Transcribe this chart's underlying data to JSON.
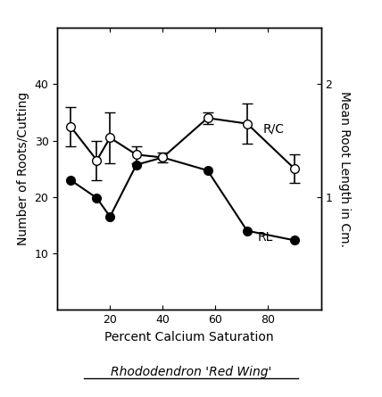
{
  "title_roman": "Rhododendron ",
  "title_italic": "'Red Wing'",
  "xlabel": "Percent Calcium Saturation",
  "ylabel_left": "Number of Roots/Cutting",
  "ylabel_right": "Mean Root Length in Cm.",
  "x": [
    5,
    15,
    20,
    30,
    40,
    57,
    72,
    90
  ],
  "rc_y": [
    32.5,
    26.5,
    30.5,
    27.5,
    27.0,
    34.0,
    33.0,
    25.0
  ],
  "rc_yerr": [
    3.5,
    3.5,
    4.5,
    1.5,
    0.8,
    1.0,
    3.5,
    2.5
  ],
  "rl_y": [
    23.0,
    19.8,
    16.5,
    25.7,
    27.0,
    24.7,
    14.0,
    12.3
  ],
  "xlim": [
    0,
    100
  ],
  "ylim_left": [
    0,
    50
  ],
  "ylim_right": [
    0,
    2.5
  ],
  "xticks": [
    20,
    40,
    60,
    80
  ],
  "yticks_left": [
    10,
    20,
    30,
    40
  ],
  "yticks_right": [
    1,
    2
  ],
  "rc_label": "R/C",
  "rl_label": "RL"
}
